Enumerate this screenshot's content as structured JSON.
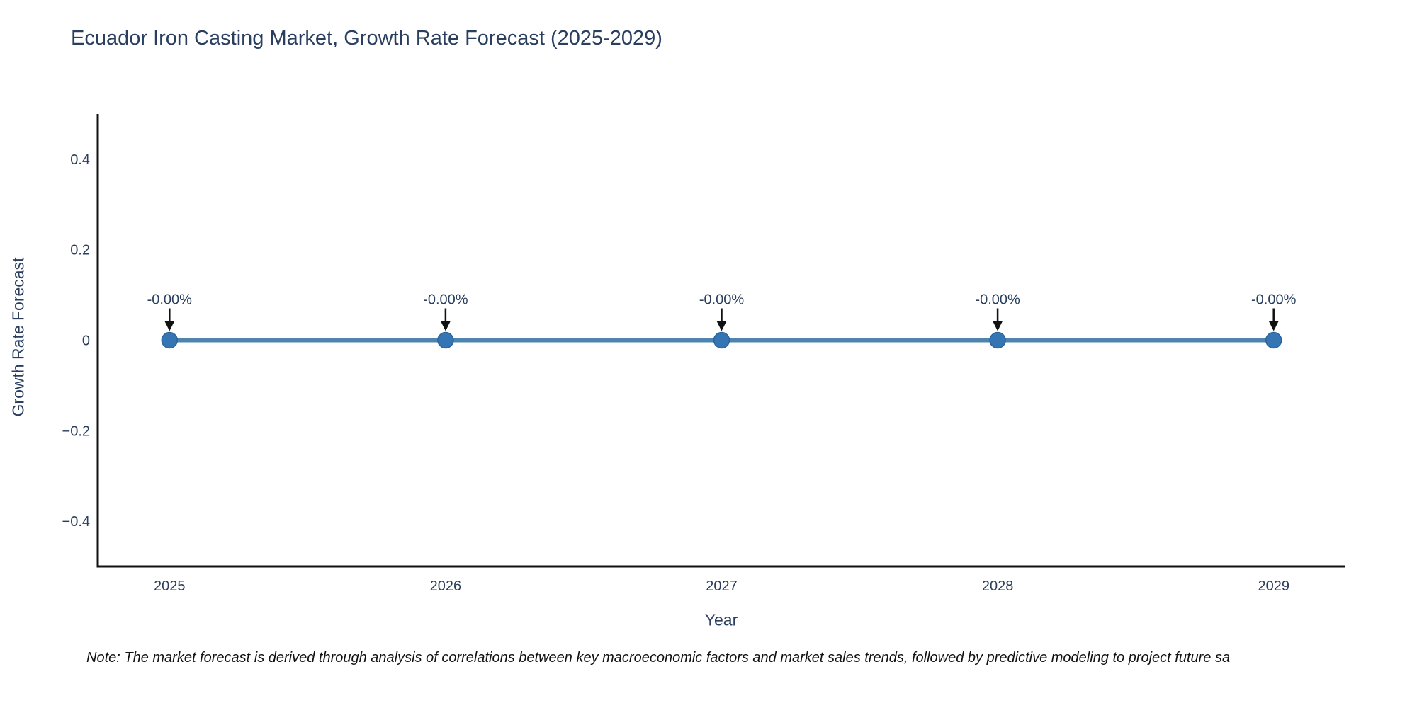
{
  "title": "Ecuador Iron Casting Market, Growth Rate Forecast (2025-2029)",
  "note": "Note: The market forecast is derived through analysis of correlations between key macroeconomic factors and market sales trends, followed by predictive modeling to project future sa",
  "chart_data": {
    "type": "line",
    "title": "Ecuador Iron Casting Market, Growth Rate Forecast (2025-2029)",
    "xlabel": "Year",
    "ylabel": "Growth Rate Forecast",
    "x": [
      2025,
      2026,
      2027,
      2028,
      2029
    ],
    "y": [
      0,
      0,
      0,
      0,
      0
    ],
    "point_labels": [
      "-0.00%",
      "-0.00%",
      "-0.00%",
      "-0.00%",
      "-0.00%"
    ],
    "xticks": [
      2025,
      2026,
      2027,
      2028,
      2029
    ],
    "xtick_labels": [
      "2025",
      "2026",
      "2027",
      "2028",
      "2029"
    ],
    "yticks": [
      0.4,
      0.2,
      0,
      -0.2,
      -0.4
    ],
    "ytick_labels": [
      "0.4",
      "0.2",
      "0",
      "−0.2",
      "−0.4"
    ],
    "xlim": [
      2024.74,
      2029.26
    ],
    "ylim": [
      -0.5,
      0.5
    ],
    "grid": false,
    "legend": false,
    "marker_size": 11,
    "line_width": 6,
    "colors": {
      "line": "#4e84ad",
      "marker": "#3575b4",
      "marker_edge": "#2d639b",
      "arrow": "#111111",
      "axis": "#111111",
      "label": "#2a3f5f"
    }
  }
}
